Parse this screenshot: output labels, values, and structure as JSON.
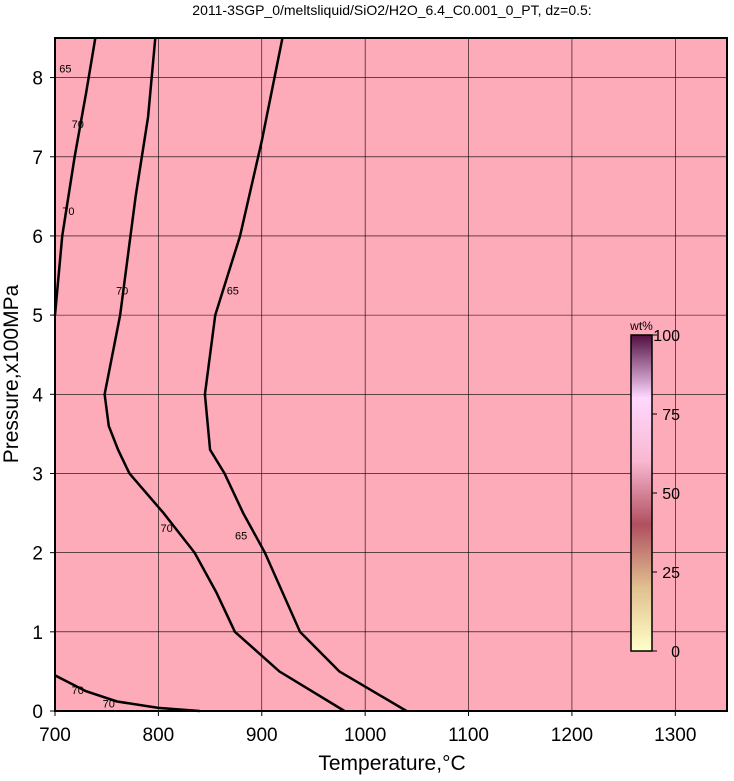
{
  "chart_data": {
    "type": "contour",
    "title": "2011-3SGP_0/meltsliquid/SiO2/H2O_6.4_C0.001_0_PT, dz=0.5:",
    "x_label": "Temperature,°C",
    "y_label": "Pressure,x100MPa",
    "xlim": [
      700,
      1350
    ],
    "ylim": [
      0,
      8.5
    ],
    "xticks": [
      700,
      800,
      900,
      1000,
      1100,
      1200,
      1300
    ],
    "yticks": [
      0,
      1,
      2,
      3,
      4,
      5,
      6,
      7,
      8
    ],
    "grid": true,
    "background": "#fdaab9",
    "contour_color": "#000000",
    "series": [
      {
        "name": "70",
        "x": [
          739,
          730,
          719,
          707,
          700
        ],
        "y": [
          8.5,
          7.8,
          7,
          6,
          5
        ]
      },
      {
        "name": "70",
        "x": [
          797,
          790,
          778,
          763,
          748,
          752,
          761,
          772,
          805,
          835,
          856,
          874,
          917,
          980
        ],
        "y": [
          8.5,
          7.5,
          6.5,
          5,
          4,
          3.6,
          3.3,
          3,
          2.5,
          2,
          1.5,
          1,
          0.5,
          0
        ]
      },
      {
        "name": "65",
        "x": [
          920,
          900,
          879,
          855,
          845,
          850,
          864,
          882,
          903,
          937,
          975,
          1040
        ],
        "y": [
          8.5,
          7.2,
          6,
          5,
          4,
          3.3,
          3,
          2.5,
          2,
          1,
          0.5,
          0
        ]
      },
      {
        "name": "70",
        "x": [
          700,
          730,
          760,
          800,
          840
        ],
        "y": [
          0.45,
          0.25,
          0.12,
          0.04,
          0
        ]
      }
    ],
    "contour_labels": [
      {
        "text": "65",
        "x": 710,
        "y": 8.1
      },
      {
        "text": "70",
        "x": 722,
        "y": 7.4
      },
      {
        "text": "70",
        "x": 713,
        "y": 6.3
      },
      {
        "text": "70",
        "x": 765,
        "y": 5.3
      },
      {
        "text": "65",
        "x": 872,
        "y": 5.3
      },
      {
        "text": "70",
        "x": 808,
        "y": 2.3
      },
      {
        "text": "65",
        "x": 880,
        "y": 2.2
      },
      {
        "text": "70",
        "x": 722,
        "y": 0.25
      },
      {
        "text": "70",
        "x": 752,
        "y": 0.08
      }
    ],
    "colorbar": {
      "label": "wt%",
      "lim": [
        0,
        100
      ],
      "ticks": [
        0,
        25,
        50,
        75,
        100
      ],
      "colors": [
        "#ffffc8",
        "#e0c090",
        "#b05060",
        "#f8b8d0",
        "#ffd8ff",
        "#501040"
      ]
    }
  }
}
